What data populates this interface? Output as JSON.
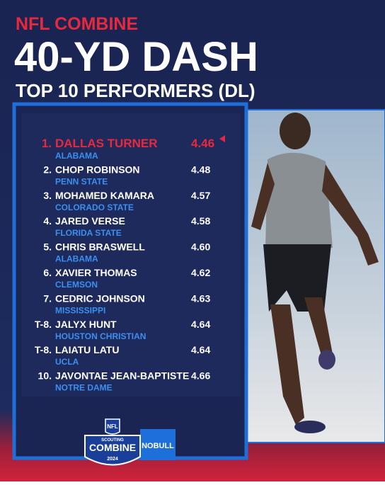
{
  "header": {
    "kicker": "NFL COMBINE",
    "title": "40-YD DASH",
    "subtitle": "TOP 10 PERFORMERS (DL)"
  },
  "table": {
    "rows": [
      {
        "rank": "1.",
        "name": "DALLAS TURNER",
        "school": "ALABAMA",
        "time": "4.46"
      },
      {
        "rank": "2.",
        "name": "CHOP ROBINSON",
        "school": "PENN STATE",
        "time": "4.48"
      },
      {
        "rank": "3.",
        "name": "MOHAMED KAMARA",
        "school": "COLORADO STATE",
        "time": "4.57"
      },
      {
        "rank": "4.",
        "name": "JARED VERSE",
        "school": "FLORIDA STATE",
        "time": "4.58"
      },
      {
        "rank": "5.",
        "name": "CHRIS BRASWELL",
        "school": "ALABAMA",
        "time": "4.60"
      },
      {
        "rank": "6.",
        "name": "XAVIER THOMAS",
        "school": "CLEMSON",
        "time": "4.62"
      },
      {
        "rank": "7.",
        "name": "CEDRIC JOHNSON",
        "school": "MISSISSIPPI",
        "time": "4.63"
      },
      {
        "rank": "T-8.",
        "name": "JALYX HUNT",
        "school": "HOUSTON CHRISTIAN",
        "time": "4.64"
      },
      {
        "rank": "T-8.",
        "name": "LAIATU LATU",
        "school": "UCLA",
        "time": "4.64"
      },
      {
        "rank": "10.",
        "name": "JAVONTAE JEAN-BAPTISTE",
        "school": "NOTRE DAME",
        "time": "4.66"
      }
    ]
  },
  "logo": {
    "league": "NFL",
    "event_top": "SCOUTING",
    "event": "COMBINE",
    "year": "2024",
    "sponsor": "NOBULL"
  }
}
